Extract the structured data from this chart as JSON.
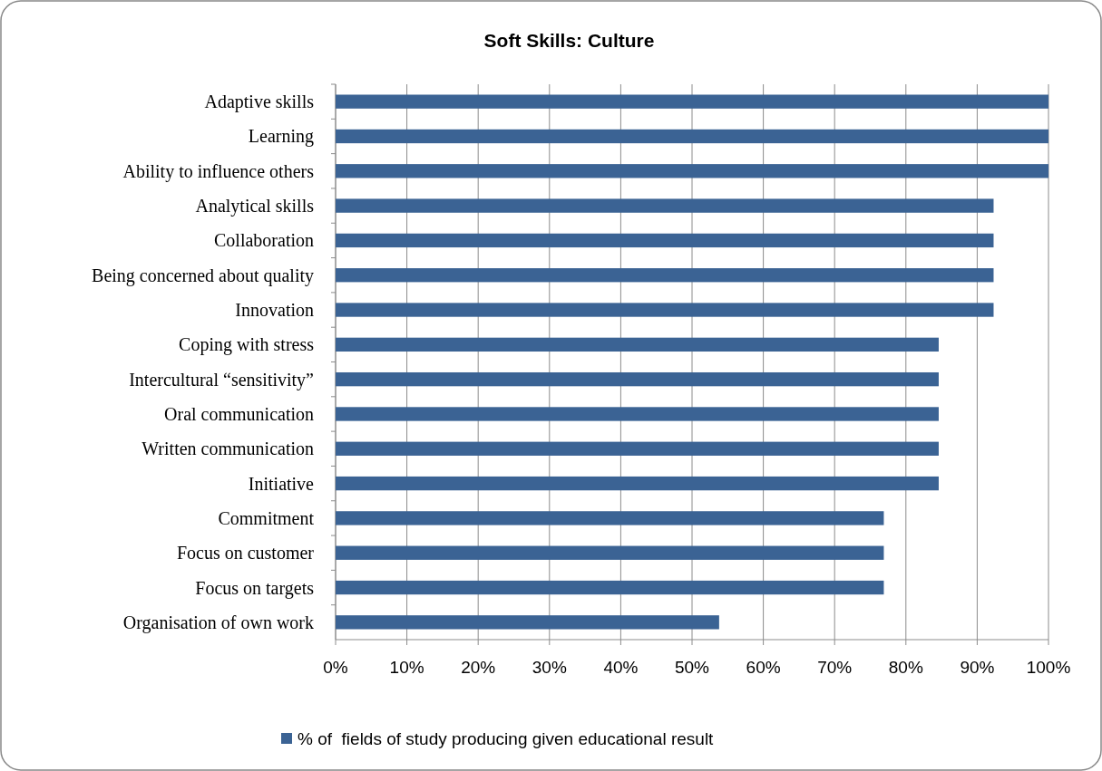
{
  "chart_data": {
    "type": "bar",
    "orientation": "horizontal",
    "title": "Soft Skills: Culture",
    "categories": [
      "Adaptive skills",
      "Learning",
      "Ability to influence others",
      "Analytical skills",
      "Collaboration",
      "Being concerned about quality",
      "Innovation",
      "Coping with stress",
      "Intercultural “sensitivity”",
      "Oral communication",
      "Written communication",
      "Initiative",
      "Commitment",
      "Focus on customer",
      "Focus on targets",
      "Organisation of own work"
    ],
    "series": [
      {
        "name": "% of  fields of study producing given educational result",
        "color": "#3b6394",
        "values": [
          100,
          100,
          100,
          92.3,
          92.3,
          92.3,
          92.3,
          84.6,
          84.6,
          84.6,
          84.6,
          84.6,
          76.9,
          76.9,
          76.9,
          53.8
        ]
      }
    ],
    "xlim": [
      0,
      100
    ],
    "xticks": [
      {
        "value": 0,
        "label": "0%"
      },
      {
        "value": 10,
        "label": "10%"
      },
      {
        "value": 20,
        "label": "20%"
      },
      {
        "value": 30,
        "label": "30%"
      },
      {
        "value": 40,
        "label": "40%"
      },
      {
        "value": 50,
        "label": "50%"
      },
      {
        "value": 60,
        "label": "60%"
      },
      {
        "value": 70,
        "label": "70%"
      },
      {
        "value": 80,
        "label": "80%"
      },
      {
        "value": 90,
        "label": "90%"
      },
      {
        "value": 100,
        "label": "100%"
      }
    ],
    "grid": "x",
    "legend": "bottom"
  }
}
